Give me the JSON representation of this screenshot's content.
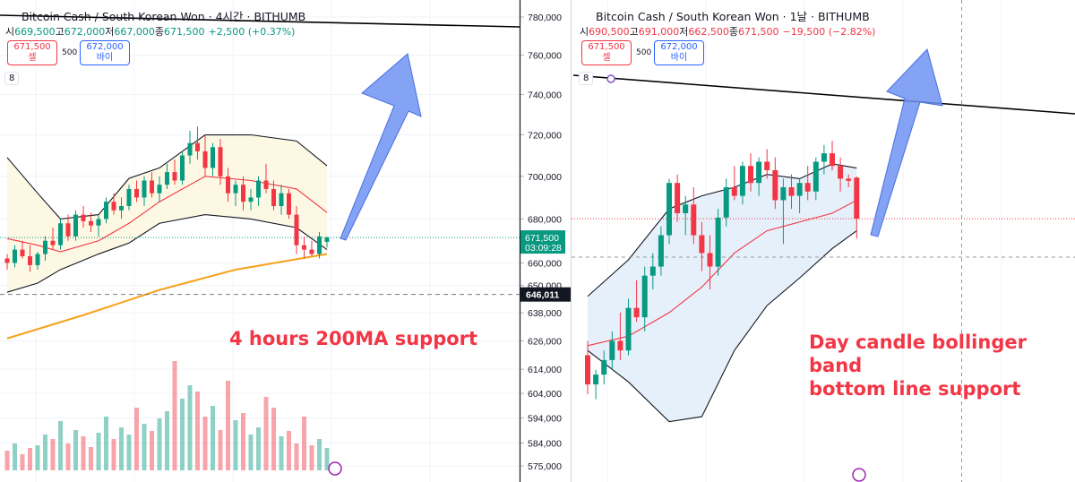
{
  "panels": [
    {
      "title": "Bitcoin Cash / South Korean Won · 4시간 · BITHUMB",
      "ohlc": [
        {
          "label": "시",
          "value": "669,500"
        },
        {
          "label": "고",
          "value": "672,000"
        },
        {
          "label": "저",
          "value": "667,000"
        },
        {
          "label": "종",
          "value": "671,500"
        }
      ],
      "change": "+2,500 (+0.37%)",
      "change_color": "#089981",
      "sell": {
        "price": "671,500",
        "label": "셀"
      },
      "lot": "500",
      "buy": {
        "price": "672,000",
        "label": "바이"
      },
      "indicators": "8",
      "annotation": [
        "4 hours 200MA support"
      ],
      "annotation_color": "#f23645",
      "ylim": [
        575000,
        780000
      ],
      "log_scale": true,
      "yticks": [
        {
          "value": 780000,
          "label": "780,000"
        },
        {
          "value": 760000,
          "label": "760,000"
        },
        {
          "value": 740000,
          "label": "740,000"
        },
        {
          "value": 720000,
          "label": "720,000"
        },
        {
          "value": 700000,
          "label": "700,000"
        },
        {
          "value": 680000,
          "label": "680,000"
        },
        {
          "value": 660000,
          "label": "660,000"
        },
        {
          "value": 650000,
          "label": "650,000"
        },
        {
          "value": 638000,
          "label": "638,000"
        },
        {
          "value": 626000,
          "label": "626,000"
        },
        {
          "value": 614000,
          "label": "614,000"
        },
        {
          "value": 604000,
          "label": "604,000"
        },
        {
          "value": 594000,
          "label": "594,000"
        },
        {
          "value": 584000,
          "label": "584,000"
        },
        {
          "value": 575000,
          "label": "575,000"
        }
      ],
      "price_label": {
        "value": 671500,
        "label": "671,500",
        "countdown": "03:09:28"
      },
      "level": {
        "value": 646011,
        "label": "646,011"
      },
      "candles": [
        [
          662000,
          664000,
          657000,
          660000
        ],
        [
          660000,
          668000,
          658000,
          666000
        ],
        [
          666000,
          670000,
          662000,
          663000
        ],
        [
          663000,
          668000,
          656000,
          659000
        ],
        [
          659000,
          665000,
          657000,
          664000
        ],
        [
          664000,
          672000,
          661000,
          670000
        ],
        [
          670000,
          676000,
          666000,
          668000
        ],
        [
          668000,
          680000,
          666000,
          678000
        ],
        [
          678000,
          682000,
          670000,
          672000
        ],
        [
          672000,
          684000,
          670000,
          682000
        ],
        [
          682000,
          686000,
          676000,
          679000
        ],
        [
          679000,
          683000,
          674000,
          677000
        ],
        [
          677000,
          682000,
          672000,
          680000
        ],
        [
          680000,
          690000,
          678000,
          688000
        ],
        [
          688000,
          692000,
          682000,
          684000
        ],
        [
          684000,
          690000,
          680000,
          686000
        ],
        [
          686000,
          696000,
          684000,
          694000
        ],
        [
          694000,
          698000,
          688000,
          690000
        ],
        [
          690000,
          700000,
          686000,
          698000
        ],
        [
          698000,
          702000,
          690000,
          692000
        ],
        [
          692000,
          700000,
          688000,
          696000
        ],
        [
          696000,
          706000,
          694000,
          702000
        ],
        [
          702000,
          708000,
          696000,
          698000
        ],
        [
          698000,
          712000,
          696000,
          710000
        ],
        [
          710000,
          722000,
          706000,
          716000
        ],
        [
          716000,
          724000,
          708000,
          712000
        ],
        [
          712000,
          720000,
          700000,
          704000
        ],
        [
          704000,
          716000,
          700000,
          714000
        ],
        [
          714000,
          718000,
          696000,
          700000
        ],
        [
          700000,
          704000,
          688000,
          692000
        ],
        [
          692000,
          698000,
          686000,
          696000
        ],
        [
          696000,
          700000,
          684000,
          688000
        ],
        [
          688000,
          694000,
          684000,
          690000
        ],
        [
          690000,
          700000,
          686000,
          698000
        ],
        [
          698000,
          706000,
          692000,
          694000
        ],
        [
          694000,
          698000,
          684000,
          686000
        ],
        [
          686000,
          696000,
          682000,
          692000
        ],
        [
          692000,
          694000,
          680000,
          682000
        ],
        [
          682000,
          686000,
          664000,
          668000
        ],
        [
          668000,
          672000,
          662000,
          666000
        ],
        [
          666000,
          670000,
          663000,
          664000
        ],
        [
          664000,
          674000,
          662000,
          672000
        ],
        [
          669500,
          672000,
          667000,
          671500
        ]
      ],
      "volume": [
        22,
        30,
        18,
        25,
        28,
        40,
        35,
        55,
        30,
        45,
        38,
        26,
        42,
        60,
        35,
        48,
        40,
        70,
        52,
        44,
        58,
        66,
        122,
        80,
        95,
        88,
        60,
        72,
        45,
        100,
        56,
        64,
        40,
        48,
        82,
        70,
        38,
        44,
        30,
        60,
        28,
        35,
        25
      ],
      "bollinger": {
        "index": [
          0,
          4,
          7,
          12,
          16,
          20,
          26,
          32,
          38,
          42
        ],
        "upper": [
          709000,
          692000,
          680000,
          682000,
          699000,
          704000,
          720000,
          720000,
          717000,
          705000
        ],
        "middle": [
          671000,
          668000,
          665000,
          670000,
          678000,
          688000,
          700000,
          698000,
          694000,
          683000
        ],
        "lower": [
          647000,
          651000,
          657000,
          664000,
          669000,
          678000,
          682000,
          680000,
          676000,
          666000
        ]
      },
      "ma200": {
        "index": [
          0,
          10,
          20,
          30,
          42
        ],
        "values": [
          627000,
          637000,
          648000,
          657000,
          664000
        ]
      }
    },
    {
      "title": "Bitcoin Cash / South Korean Won · 1날 · BITHUMB",
      "ohlc": [
        {
          "label": "시",
          "value": "690,500"
        },
        {
          "label": "고",
          "value": "691,000"
        },
        {
          "label": "저",
          "value": "662,500"
        },
        {
          "label": "종",
          "value": "671,500"
        }
      ],
      "change": "−19,500 (−2.82%)",
      "change_color": "#f23645",
      "sell": {
        "price": "671,500",
        "label": "셀"
      },
      "lot": "500",
      "buy": {
        "price": "672,000",
        "label": "바이"
      },
      "indicators": "8",
      "annotation": [
        "Day candle bollinger band",
        "bottom line support"
      ],
      "annotation_color": "#f23645",
      "ylim": [
        575000,
        780000
      ],
      "log_scale": true,
      "candles": [
        [
          612000,
          618000,
          596000,
          600000
        ],
        [
          600000,
          606000,
          594000,
          604000
        ],
        [
          604000,
          614000,
          600000,
          610000
        ],
        [
          610000,
          622000,
          606000,
          618000
        ],
        [
          618000,
          630000,
          610000,
          614000
        ],
        [
          614000,
          636000,
          612000,
          632000
        ],
        [
          632000,
          644000,
          626000,
          628000
        ],
        [
          628000,
          650000,
          622000,
          646000
        ],
        [
          646000,
          656000,
          640000,
          650000
        ],
        [
          650000,
          668000,
          646000,
          664000
        ],
        [
          664000,
          690000,
          660000,
          688000
        ],
        [
          688000,
          692000,
          670000,
          674000
        ],
        [
          674000,
          682000,
          664000,
          678000
        ],
        [
          678000,
          686000,
          660000,
          664000
        ],
        [
          664000,
          670000,
          648000,
          656000
        ],
        [
          656000,
          664000,
          640000,
          650000
        ],
        [
          650000,
          676000,
          646000,
          672000
        ],
        [
          672000,
          690000,
          668000,
          686000
        ],
        [
          686000,
          696000,
          680000,
          682000
        ],
        [
          682000,
          698000,
          678000,
          696000
        ],
        [
          696000,
          702000,
          684000,
          688000
        ],
        [
          688000,
          700000,
          682000,
          698000
        ],
        [
          698000,
          704000,
          690000,
          694000
        ],
        [
          694000,
          700000,
          676000,
          680000
        ],
        [
          680000,
          690000,
          660000,
          686000
        ],
        [
          686000,
          692000,
          676000,
          682000
        ],
        [
          682000,
          690000,
          674000,
          688000
        ],
        [
          688000,
          696000,
          680000,
          684000
        ],
        [
          684000,
          700000,
          680000,
          698000
        ],
        [
          698000,
          706000,
          692000,
          702000
        ],
        [
          702000,
          708000,
          694000,
          696000
        ],
        [
          696000,
          700000,
          684000,
          690000
        ],
        [
          690000,
          692000,
          686000,
          689000
        ],
        [
          690500,
          691000,
          662500,
          671500
        ]
      ],
      "bollinger": {
        "index": [
          0,
          5,
          10,
          14,
          18,
          22,
          26,
          30,
          33
        ],
        "upper": [
          637000,
          653000,
          676000,
          682000,
          686000,
          692000,
          690000,
          697000,
          695000
        ],
        "middle": [
          616000,
          620000,
          630000,
          641000,
          656000,
          666000,
          670000,
          674000,
          680000
        ],
        "lower": [
          614000,
          601000,
          585000,
          587000,
          614000,
          633000,
          645000,
          658000,
          666000
        ]
      }
    }
  ]
}
